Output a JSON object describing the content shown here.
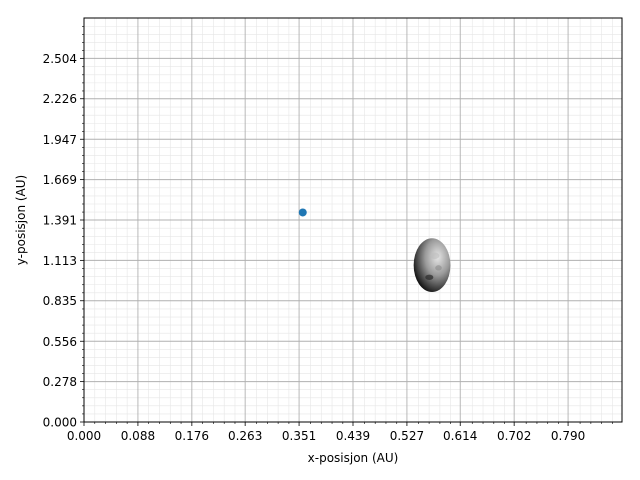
{
  "chart_data": {
    "type": "scatter",
    "title": "",
    "xlabel": "x-posisjon (AU)",
    "ylabel": "y-posisjon (AU)",
    "xlim": [
      0,
      0.878
    ],
    "ylim": [
      0,
      2.782
    ],
    "x_ticks": [
      0.0,
      0.088,
      0.176,
      0.263,
      0.351,
      0.439,
      0.527,
      0.614,
      0.702,
      0.79
    ],
    "x_tick_labels": [
      "0.000",
      "0.088",
      "0.176",
      "0.263",
      "0.351",
      "0.439",
      "0.527",
      "0.614",
      "0.702",
      "0.790"
    ],
    "y_ticks": [
      0.0,
      0.278,
      0.556,
      0.835,
      1.113,
      1.391,
      1.669,
      1.947,
      2.226,
      2.504
    ],
    "y_tick_labels": [
      "0.000",
      "0.278",
      "0.556",
      "0.835",
      "1.113",
      "1.391",
      "1.669",
      "1.947",
      "2.226",
      "2.504"
    ],
    "grid": {
      "major": true,
      "minor": true
    },
    "series": [
      {
        "points": [
          {
            "x": 0.357,
            "y": 1.443
          }
        ],
        "color": "#1f77b4"
      }
    ],
    "image_marker": {
      "label": "asteroid-image",
      "x": 0.568,
      "y": 1.08,
      "width": 0.06,
      "height": 0.37
    }
  }
}
